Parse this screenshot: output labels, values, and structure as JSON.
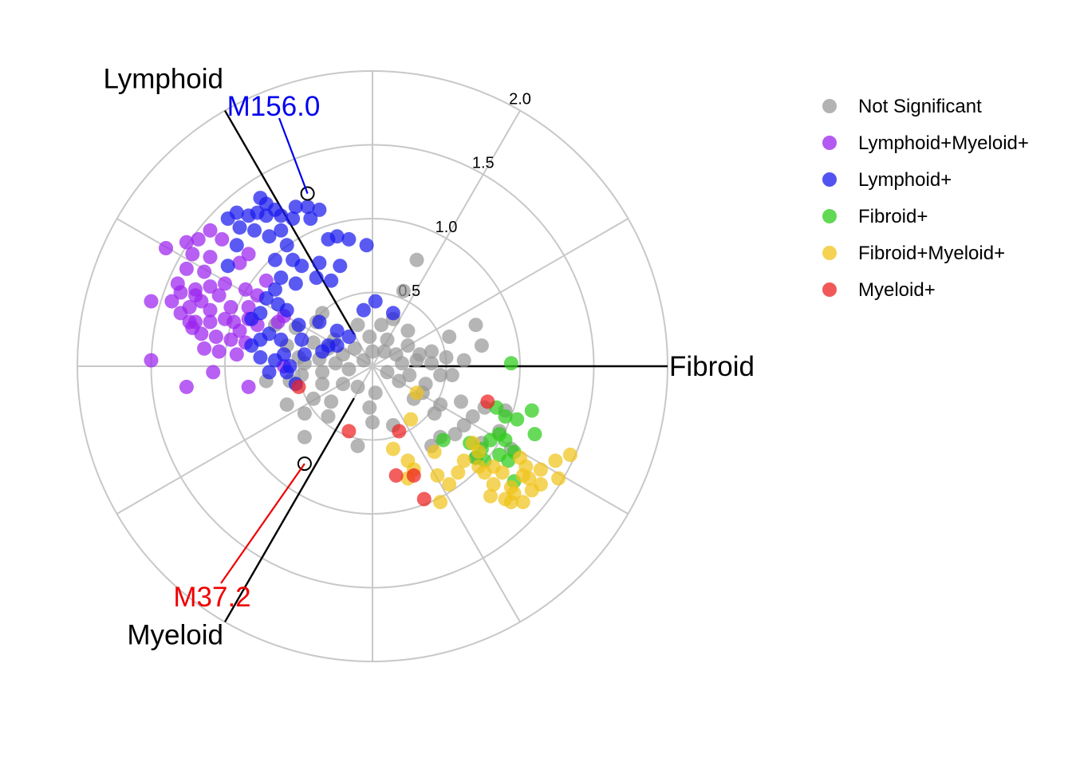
{
  "chart_data": {
    "type": "scatter",
    "coordinate_system": "polar",
    "radial_ticks": [
      0.5,
      1.0,
      1.5,
      2.0
    ],
    "radial_tick_labels": [
      "0.5",
      "1.0",
      "1.5",
      "2.0"
    ],
    "rmax": 2.0,
    "axes": [
      {
        "label": "Lymphoid",
        "angle_deg": 120
      },
      {
        "label": "Fibroid",
        "angle_deg": 0
      },
      {
        "label": "Myeloid",
        "angle_deg": 240
      }
    ],
    "legend_position": "right",
    "callouts": [
      {
        "label": "M156.0",
        "point": [
          -0.44,
          1.17
        ],
        "color": "#0000ee"
      },
      {
        "label": "M37.2",
        "point": [
          -0.46,
          -0.66
        ],
        "color": "#ee0000"
      }
    ],
    "series": [
      {
        "name": "Not Significant",
        "color": "#999999",
        "points": [
          [
            0.3,
            0.72
          ],
          [
            0.21,
            0.51
          ],
          [
            0.7,
            0.28
          ],
          [
            0.52,
            0.2
          ],
          [
            0.74,
            0.14
          ],
          [
            0.5,
            0.06
          ],
          [
            0.54,
            -0.06
          ],
          [
            0.2,
            0.02
          ],
          [
            0.32,
            0.08
          ],
          [
            0.1,
            0.18
          ],
          [
            -0.02,
            0.2
          ],
          [
            0.06,
            0.28
          ],
          [
            0.24,
            0.14
          ],
          [
            0.16,
            0.08
          ],
          [
            0.46,
            -0.06
          ],
          [
            0.4,
            0.02
          ],
          [
            0.3,
            0.04
          ],
          [
            0.25,
            -0.06
          ],
          [
            0.1,
            -0.04
          ],
          [
            -0.06,
            0.04
          ],
          [
            -0.12,
            0.12
          ],
          [
            -0.2,
            0.08
          ],
          [
            -0.26,
            0.18
          ],
          [
            -0.3,
            0.12
          ],
          [
            -0.36,
            0.05
          ],
          [
            -0.4,
            0.16
          ],
          [
            -0.5,
            0.06
          ],
          [
            -0.46,
            0.02
          ],
          [
            -0.34,
            -0.04
          ],
          [
            -0.2,
            -0.12
          ],
          [
            -0.1,
            -0.14
          ],
          [
            0.02,
            -0.18
          ],
          [
            -0.28,
            -0.24
          ],
          [
            -0.34,
            -0.12
          ],
          [
            -0.56,
            -0.1
          ],
          [
            -0.48,
            -0.06
          ],
          [
            -0.72,
            -0.1
          ],
          [
            -0.58,
            -0.26
          ],
          [
            -0.46,
            -0.32
          ],
          [
            -0.46,
            -0.48
          ],
          [
            -0.1,
            -0.54
          ],
          [
            0.14,
            -0.4
          ],
          [
            0.0,
            -0.38
          ],
          [
            0.18,
            -0.1
          ],
          [
            0.28,
            -0.22
          ],
          [
            0.34,
            -0.18
          ],
          [
            0.42,
            -0.32
          ],
          [
            0.46,
            -0.48
          ],
          [
            0.6,
            -0.24
          ],
          [
            0.62,
            -0.4
          ],
          [
            0.56,
            -0.46
          ],
          [
            0.68,
            -0.34
          ],
          [
            0.74,
            -0.52
          ],
          [
            0.86,
            -0.44
          ],
          [
            0.9,
            -0.3
          ],
          [
            0.76,
            -0.28
          ],
          [
            0.94,
            -0.56
          ],
          [
            0.7,
            -0.62
          ],
          [
            0.4,
            -0.54
          ],
          [
            0.46,
            -0.26
          ],
          [
            -0.66,
            0.28
          ],
          [
            -0.52,
            0.26
          ],
          [
            -0.4,
            -0.22
          ],
          [
            -0.16,
            -0.02
          ],
          [
            0.08,
            0.1
          ],
          [
            0.14,
            0.32
          ],
          [
            -0.02,
            -0.28
          ],
          [
            -0.3,
            -0.34
          ],
          [
            -0.58,
            0.14
          ],
          [
            0.36,
            -0.12
          ],
          [
            0.24,
            0.24
          ],
          [
            -0.38,
            0.3
          ],
          [
            -0.25,
            0.02
          ],
          [
            0.62,
            0.04
          ],
          [
            0.4,
            0.1
          ],
          [
            -0.1,
            0.28
          ],
          [
            -0.34,
            0.36
          ],
          [
            0.0,
            0.1
          ]
        ]
      },
      {
        "name": "Lymphoid+Myeloid+",
        "color": "#9b22ee",
        "points": [
          [
            -1.4,
            0.8
          ],
          [
            -1.26,
            0.84
          ],
          [
            -1.22,
            0.76
          ],
          [
            -1.1,
            0.74
          ],
          [
            -1.14,
            0.64
          ],
          [
            -1.26,
            0.66
          ],
          [
            -1.32,
            0.56
          ],
          [
            -1.2,
            0.52
          ],
          [
            -1.16,
            0.44
          ],
          [
            -1.24,
            0.4
          ],
          [
            -1.1,
            0.38
          ],
          [
            -1.3,
            0.36
          ],
          [
            -1.2,
            0.3
          ],
          [
            -1.1,
            0.3
          ],
          [
            -1.0,
            0.32
          ],
          [
            -0.96,
            0.4
          ],
          [
            -0.94,
            0.3
          ],
          [
            -1.06,
            0.2
          ],
          [
            -1.16,
            0.22
          ],
          [
            -1.22,
            0.26
          ],
          [
            -1.14,
            0.12
          ],
          [
            -1.04,
            0.1
          ],
          [
            -0.96,
            0.18
          ],
          [
            -0.9,
            0.24
          ],
          [
            -0.84,
            0.4
          ],
          [
            -0.86,
            0.52
          ],
          [
            -0.9,
            0.7
          ],
          [
            -1.02,
            0.86
          ],
          [
            -1.1,
            0.92
          ],
          [
            -1.18,
            0.86
          ],
          [
            -1.04,
            0.48
          ],
          [
            -1.0,
            0.56
          ],
          [
            -1.2,
            0.48
          ],
          [
            -1.36,
            0.44
          ],
          [
            -1.5,
            0.44
          ],
          [
            -1.5,
            0.04
          ],
          [
            -1.08,
            -0.04
          ],
          [
            -0.92,
            0.08
          ],
          [
            -0.78,
            0.48
          ],
          [
            -0.72,
            0.58
          ],
          [
            -0.64,
            0.3
          ],
          [
            -0.78,
            0.28
          ],
          [
            -0.86,
            0.16
          ],
          [
            -1.1,
            0.54
          ],
          [
            -1.24,
            0.3
          ],
          [
            -0.84,
            0.76
          ],
          [
            -0.84,
            0.32
          ],
          [
            -0.6,
            0.34
          ],
          [
            -1.26,
            -0.14
          ],
          [
            -0.84,
            -0.14
          ],
          [
            -0.6,
            0.0
          ],
          [
            -1.3,
            0.5
          ]
        ]
      },
      {
        "name": "Lymphoid+",
        "color": "#1a1aee",
        "points": [
          [
            -0.76,
            1.14
          ],
          [
            -0.66,
            1.06
          ],
          [
            -0.52,
            1.08
          ],
          [
            -0.44,
            1.08
          ],
          [
            -0.36,
            1.06
          ],
          [
            -0.42,
            1.0
          ],
          [
            -0.54,
            1.0
          ],
          [
            -0.62,
            1.02
          ],
          [
            -0.72,
            1.02
          ],
          [
            -0.78,
            1.04
          ],
          [
            -0.84,
            1.02
          ],
          [
            -0.92,
            1.04
          ],
          [
            -0.9,
            0.94
          ],
          [
            -0.8,
            0.92
          ],
          [
            -0.7,
            0.88
          ],
          [
            -0.62,
            0.92
          ],
          [
            -0.58,
            0.82
          ],
          [
            -0.54,
            0.72
          ],
          [
            -0.48,
            0.68
          ],
          [
            -0.36,
            0.7
          ],
          [
            -0.3,
            0.86
          ],
          [
            -0.24,
            0.88
          ],
          [
            -0.16,
            0.86
          ],
          [
            -0.04,
            0.82
          ],
          [
            -0.22,
            0.68
          ],
          [
            -0.28,
            0.58
          ],
          [
            -0.38,
            0.6
          ],
          [
            -0.52,
            0.56
          ],
          [
            -0.62,
            0.6
          ],
          [
            -0.66,
            0.52
          ],
          [
            -0.72,
            0.46
          ],
          [
            -0.76,
            0.36
          ],
          [
            -0.82,
            0.32
          ],
          [
            -0.76,
            0.18
          ],
          [
            -0.7,
            0.22
          ],
          [
            -0.62,
            0.18
          ],
          [
            -0.6,
            0.08
          ],
          [
            -0.66,
            0.04
          ],
          [
            -0.76,
            0.06
          ],
          [
            -0.82,
            0.14
          ],
          [
            -0.7,
            -0.04
          ],
          [
            -0.56,
            0.0
          ],
          [
            -0.46,
            0.08
          ],
          [
            -0.34,
            0.1
          ],
          [
            -0.3,
            0.14
          ],
          [
            -0.24,
            0.24
          ],
          [
            -0.36,
            0.3
          ],
          [
            -0.16,
            0.2
          ],
          [
            -0.06,
            0.38
          ],
          [
            0.02,
            0.44
          ],
          [
            0.14,
            0.36
          ],
          [
            -0.5,
            0.28
          ],
          [
            -0.58,
            0.38
          ],
          [
            -0.64,
            0.42
          ],
          [
            -0.58,
            -0.04
          ],
          [
            -0.52,
            -0.12
          ],
          [
            -0.24,
            0.14
          ],
          [
            -0.48,
            0.18
          ],
          [
            -0.98,
            0.68
          ],
          [
            -0.92,
            0.82
          ],
          [
            -0.66,
            0.72
          ],
          [
            -0.72,
            1.1
          ],
          [
            -0.98,
            1.0
          ]
        ]
      },
      {
        "name": "Fibroid+",
        "color": "#2ecc1a",
        "points": [
          [
            0.94,
            0.02
          ],
          [
            0.84,
            -0.28
          ],
          [
            0.9,
            -0.34
          ],
          [
            0.98,
            -0.36
          ],
          [
            1.08,
            -0.3
          ],
          [
            1.1,
            -0.46
          ],
          [
            0.9,
            -0.5
          ],
          [
            0.8,
            -0.5
          ],
          [
            0.74,
            -0.56
          ],
          [
            0.76,
            -0.64
          ],
          [
            0.86,
            -0.6
          ],
          [
            0.92,
            -0.64
          ],
          [
            0.96,
            -0.58
          ],
          [
            0.96,
            -0.78
          ],
          [
            0.48,
            -0.5
          ],
          [
            0.66,
            -0.52
          ],
          [
            0.7,
            -0.62
          ],
          [
            0.86,
            -0.46
          ]
        ]
      },
      {
        "name": "Fibroid+Myeloid+",
        "color": "#f0c41a",
        "points": [
          [
            0.3,
            -0.18
          ],
          [
            0.26,
            -0.36
          ],
          [
            0.14,
            -0.56
          ],
          [
            0.24,
            -0.64
          ],
          [
            0.28,
            -0.7
          ],
          [
            0.42,
            -0.58
          ],
          [
            0.44,
            -0.74
          ],
          [
            0.52,
            -0.8
          ],
          [
            0.62,
            -0.64
          ],
          [
            0.72,
            -0.68
          ],
          [
            0.76,
            -0.72
          ],
          [
            0.82,
            -0.68
          ],
          [
            0.88,
            -0.72
          ],
          [
            0.94,
            -0.82
          ],
          [
            1.02,
            -0.74
          ],
          [
            1.06,
            -0.76
          ],
          [
            1.14,
            -0.7
          ],
          [
            1.24,
            -0.64
          ],
          [
            1.34,
            -0.6
          ],
          [
            1.26,
            -0.76
          ],
          [
            1.14,
            -0.8
          ],
          [
            1.08,
            -0.84
          ],
          [
            0.96,
            -0.86
          ],
          [
            0.9,
            -0.9
          ],
          [
            0.8,
            -0.88
          ],
          [
            0.82,
            -0.8
          ],
          [
            1.0,
            -0.62
          ],
          [
            1.04,
            -0.68
          ],
          [
            0.46,
            -0.92
          ],
          [
            0.24,
            -0.76
          ],
          [
            0.68,
            -0.52
          ],
          [
            0.72,
            -0.58
          ],
          [
            0.94,
            -0.92
          ],
          [
            1.02,
            -0.92
          ],
          [
            0.58,
            -0.72
          ]
        ]
      },
      {
        "name": "Myeloid+",
        "color": "#ee2020",
        "points": [
          [
            -0.5,
            -0.14
          ],
          [
            -0.16,
            -0.44
          ],
          [
            0.18,
            -0.44
          ],
          [
            0.78,
            -0.24
          ],
          [
            0.28,
            -0.74
          ],
          [
            0.16,
            -0.74
          ],
          [
            0.35,
            -0.9
          ]
        ]
      }
    ]
  }
}
